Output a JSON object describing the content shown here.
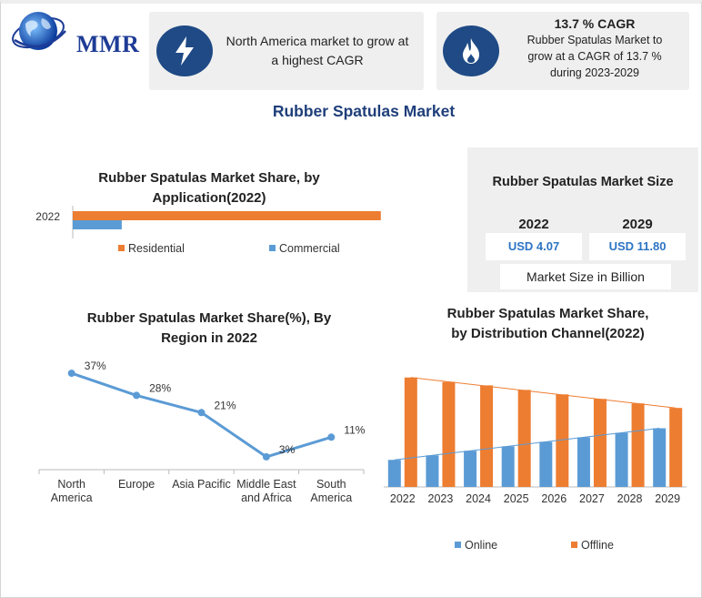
{
  "logo": {
    "text": "MMR",
    "icon": "globe-icon"
  },
  "highlight_left": {
    "icon": "lightning-icon",
    "text": "North America market to grow at a highest CAGR",
    "lines": [
      "North America market to grow at",
      "a highest CAGR"
    ]
  },
  "highlight_right": {
    "icon": "flame-icon",
    "title": "13.7 % CAGR",
    "lines": [
      "Rubber Spatulas Market to",
      "grow at a CAGR of 13.7 %",
      "during 2023-2029"
    ]
  },
  "main_title": "Rubber Spatulas Market",
  "market_size": {
    "title": "Rubber Spatulas Market Size",
    "years": [
      "2022",
      "2029"
    ],
    "values": [
      "USD 4.07",
      "USD 11.80"
    ],
    "unit_label": "Market Size in Billion"
  },
  "colors": {
    "orange": "#ED7D31",
    "blue": "#5B9BD5",
    "navy": "#1F4A85",
    "title_blue": "#1F3F7A"
  },
  "chart_data": [
    {
      "id": "application",
      "type": "bar",
      "orientation": "horizontal",
      "title_lines": [
        "Rubber Spatulas Market Share, by",
        "Application(2022)"
      ],
      "categories": [
        "2022"
      ],
      "series": [
        {
          "name": "Residential",
          "values": [
            88
          ],
          "color": "#ED7D31"
        },
        {
          "name": "Commercial",
          "values": [
            14
          ],
          "color": "#5B9BD5"
        }
      ],
      "xlim": [
        0,
        100
      ],
      "legend": "bottom"
    },
    {
      "id": "region",
      "type": "line",
      "title_lines": [
        "Rubber Spatulas Market Share(%), By",
        "Region in 2022"
      ],
      "categories": [
        [
          "North",
          "America"
        ],
        [
          "Europe"
        ],
        [
          "Asia Pacific"
        ],
        [
          "Middle East",
          "and Africa"
        ],
        [
          "South",
          "America"
        ]
      ],
      "values": [
        37,
        28,
        21,
        3,
        11
      ],
      "labels": [
        "37%",
        "28%",
        "21%",
        "3%",
        "11%"
      ],
      "ylim": [
        0,
        40
      ],
      "color": "#5B9BD5"
    },
    {
      "id": "distribution",
      "type": "bar",
      "title_lines": [
        "Rubber Spatulas Market Share,",
        "by Distribution Channel(2022)"
      ],
      "categories": [
        "2022",
        "2023",
        "2024",
        "2025",
        "2026",
        "2027",
        "2028",
        "2029"
      ],
      "series": [
        {
          "name": "Online",
          "values": [
            24,
            28,
            32,
            36,
            40,
            44,
            48,
            52
          ],
          "color": "#5B9BD5"
        },
        {
          "name": "Offline",
          "values": [
            97,
            93,
            90,
            86,
            82,
            78,
            74,
            70
          ],
          "color": "#ED7D31"
        }
      ],
      "ylim": [
        0,
        100
      ],
      "legend": "bottom"
    }
  ]
}
